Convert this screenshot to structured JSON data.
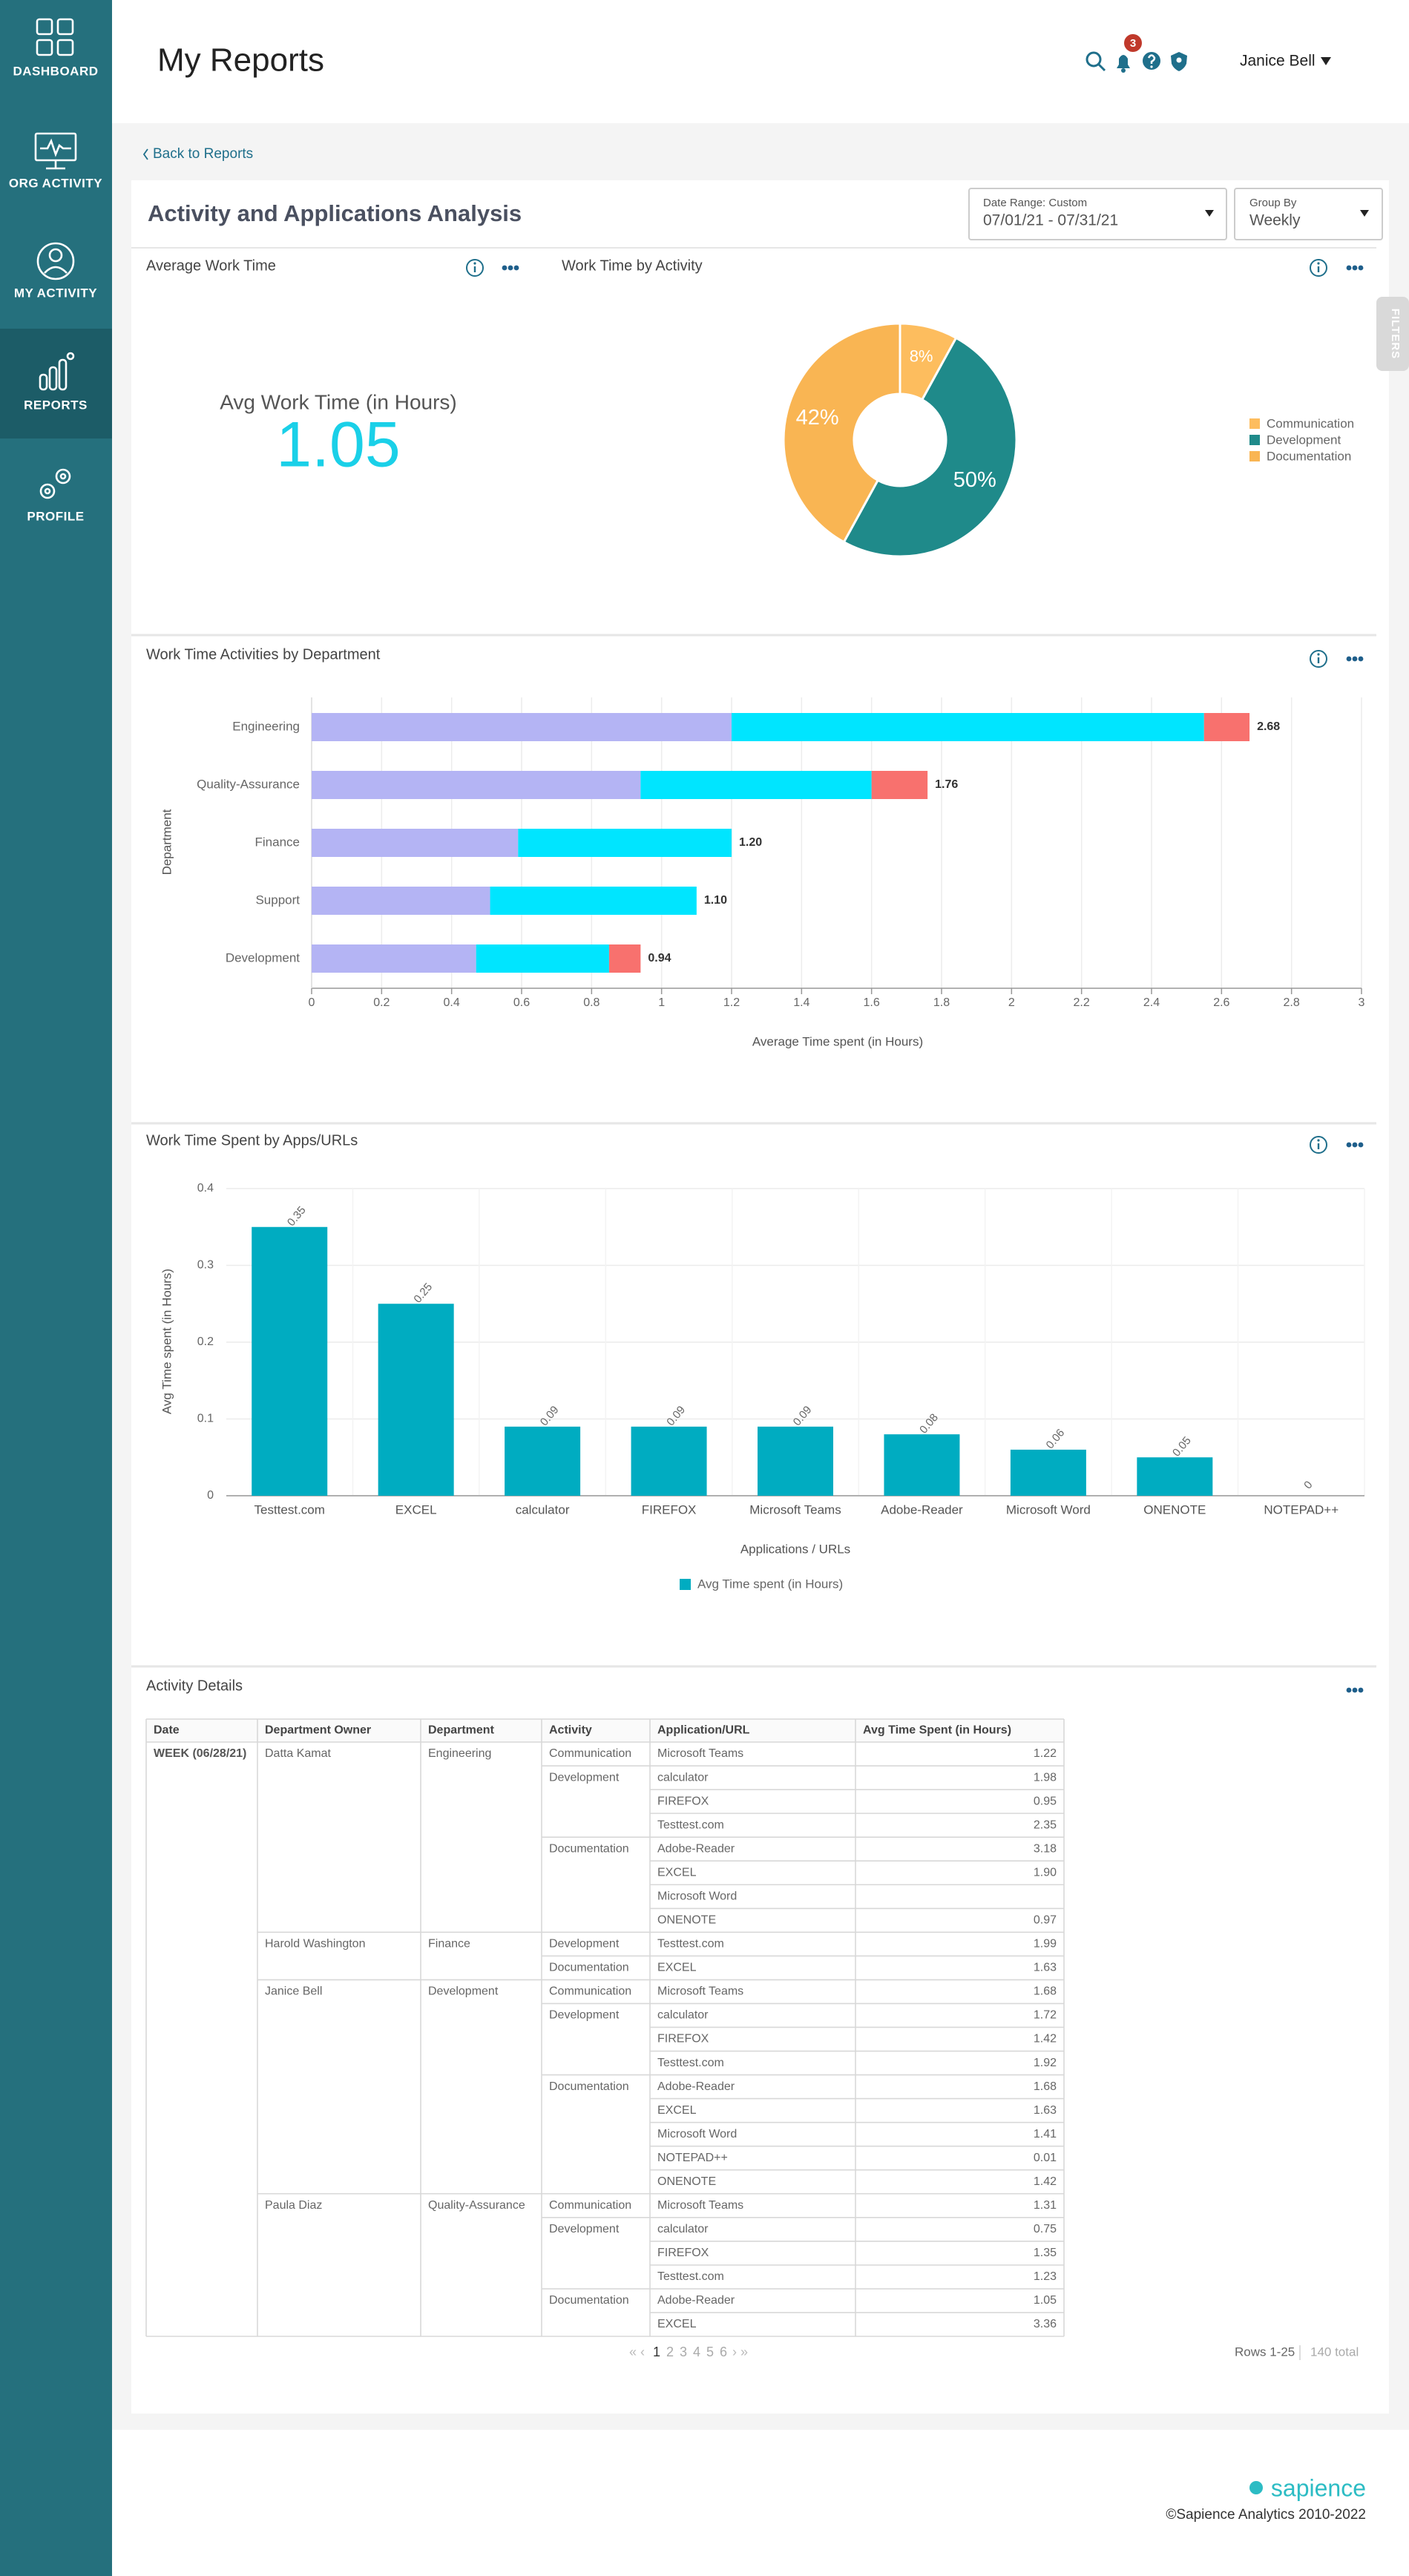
{
  "sidebar": {
    "items": [
      "DASHBOARD",
      "ORG ACTIVITY",
      "MY ACTIVITY",
      "REPORTS",
      "PROFILE"
    ]
  },
  "header": {
    "title": "My Reports",
    "notifications": 3,
    "user": "Janice Bell"
  },
  "back_link": "Back to Reports",
  "report": {
    "title": "Activity and Applications Analysis",
    "date_range_label": "Date Range: Custom",
    "date_range": "07/01/21 - 07/31/21",
    "group_by_label": "Group By",
    "group_by": "Weekly",
    "filters": "FILTERS"
  },
  "avg_work_time": {
    "title": "Average Work Time",
    "label": "Avg Work Time (in Hours)",
    "value": 1.05
  },
  "work_time_by_activity": {
    "type": "pie",
    "title": "Work Time by Activity",
    "categories": [
      "Communication",
      "Development",
      "Documentation"
    ],
    "values": [
      8,
      50,
      42
    ],
    "value_labels": [
      "8%",
      "50%",
      "42%"
    ],
    "colors": [
      "#fdbd5e",
      "#1f8a8a",
      "#f9b553"
    ]
  },
  "department_chart": {
    "type": "bar",
    "orientation": "horizontal",
    "stacked": true,
    "title": "Work Time Activities by Department",
    "categories": [
      "Engineering",
      "Quality-Assurance",
      "Finance",
      "Support",
      "Development"
    ],
    "series": [
      {
        "color": "#b4b4f4",
        "values": [
          1.2,
          0.94,
          0.59,
          0.51,
          0.47
        ]
      },
      {
        "color": "#00e5ff",
        "values": [
          1.35,
          0.66,
          0.61,
          0.59,
          0.38
        ]
      },
      {
        "color": "#f8716e",
        "values": [
          0.13,
          0.16,
          0,
          0,
          0.09
        ]
      }
    ],
    "total_labels": [
      "2.68",
      "1.76",
      "1.20",
      "1.10",
      "0.94"
    ],
    "xlim": [
      0,
      3
    ],
    "xticks": [
      0,
      0.2,
      0.4,
      0.6,
      0.8,
      1,
      1.2,
      1.4,
      1.6,
      1.8,
      2,
      2.2,
      2.4,
      2.6,
      2.8,
      3
    ],
    "xlabel": "Average Time spent (in Hours)",
    "ylabel": "Department",
    "grid": true
  },
  "apps_chart": {
    "type": "bar",
    "title": "Work Time Spent by Apps/URLs",
    "categories": [
      "Testtest.com",
      "EXCEL",
      "calculator",
      "FIREFOX",
      "Microsoft Teams",
      "Adobe-Reader",
      "Microsoft Word",
      "ONENOTE",
      "NOTEPAD++"
    ],
    "series": [
      {
        "name": "Avg Time spent (in Hours)",
        "color": "#00acc1",
        "values": [
          0.35,
          0.25,
          0.09,
          0.09,
          0.09,
          0.08,
          0.06,
          0.05,
          0
        ]
      }
    ],
    "ylim": [
      0,
      0.4
    ],
    "yticks": [
      0,
      0.1,
      0.2,
      0.3,
      0.4
    ],
    "xlabel": "Applications / URLs",
    "ylabel": "Avg Time spent (in Hours)",
    "grid": true
  },
  "table": {
    "title": "Activity Details",
    "columns": [
      "Date",
      "Department Owner",
      "Department",
      "Activity",
      "Application/URL",
      "Avg Time Spent (in Hours)"
    ],
    "groups": [
      {
        "date": "WEEK (06/28/21)",
        "owners": [
          {
            "name": "Datta Kamat",
            "department": "Engineering",
            "activities": [
              {
                "activity": "Communication",
                "apps": [
                  {
                    "app": "Microsoft Teams",
                    "value": "1.22"
                  }
                ]
              },
              {
                "activity": "Development",
                "apps": [
                  {
                    "app": "calculator",
                    "value": "1.98"
                  },
                  {
                    "app": "FIREFOX",
                    "value": "0.95"
                  },
                  {
                    "app": "Testtest.com",
                    "value": "2.35"
                  }
                ]
              },
              {
                "activity": "Documentation",
                "apps": [
                  {
                    "app": "Adobe-Reader",
                    "value": "3.18"
                  },
                  {
                    "app": "EXCEL",
                    "value": "1.90"
                  },
                  {
                    "app": "Microsoft Word"
                  },
                  {
                    "app": "ONENOTE",
                    "value": "0.97"
                  }
                ]
              }
            ]
          },
          {
            "name": "Harold Washington",
            "department": "Finance",
            "activities": [
              {
                "activity": "Development",
                "apps": [
                  {
                    "app": "Testtest.com",
                    "value": "1.99"
                  }
                ]
              },
              {
                "activity": "Documentation",
                "apps": [
                  {
                    "app": "EXCEL",
                    "value": "1.63"
                  }
                ]
              }
            ]
          },
          {
            "name": "Janice Bell",
            "department": "Development",
            "activities": [
              {
                "activity": "Communication",
                "apps": [
                  {
                    "app": "Microsoft Teams",
                    "value": "1.68"
                  }
                ]
              },
              {
                "activity": "Development",
                "apps": [
                  {
                    "app": "calculator",
                    "value": "1.72"
                  },
                  {
                    "app": "FIREFOX",
                    "value": "1.42"
                  },
                  {
                    "app": "Testtest.com",
                    "value": "1.92"
                  }
                ]
              },
              {
                "activity": "Documentation",
                "apps": [
                  {
                    "app": "Adobe-Reader",
                    "value": "1.68"
                  },
                  {
                    "app": "EXCEL",
                    "value": "1.63"
                  },
                  {
                    "app": "Microsoft Word",
                    "value": "1.41"
                  },
                  {
                    "app": "NOTEPAD++",
                    "value": "0.01"
                  },
                  {
                    "app": "ONENOTE",
                    "value": "1.42"
                  }
                ]
              }
            ]
          },
          {
            "name": "Paula Diaz",
            "department": "Quality-Assurance",
            "activities": [
              {
                "activity": "Communication",
                "apps": [
                  {
                    "app": "Microsoft Teams",
                    "value": "1.31"
                  }
                ]
              },
              {
                "activity": "Development",
                "apps": [
                  {
                    "app": "calculator",
                    "value": "0.75"
                  },
                  {
                    "app": "FIREFOX",
                    "value": "1.35"
                  },
                  {
                    "app": "Testtest.com",
                    "value": "1.23"
                  }
                ]
              },
              {
                "activity": "Documentation",
                "apps": [
                  {
                    "app": "Adobe-Reader",
                    "value": "1.05"
                  },
                  {
                    "app": "EXCEL",
                    "value": "3.36"
                  }
                ]
              }
            ]
          }
        ]
      }
    ]
  },
  "pagination": {
    "pages": [
      1,
      2,
      3,
      4,
      5,
      6
    ],
    "current": 1,
    "rows": "Rows 1-25",
    "total": "140 total"
  },
  "footer": {
    "brand": "sapience",
    "copyright": "©Sapience Analytics 2010-2022"
  }
}
